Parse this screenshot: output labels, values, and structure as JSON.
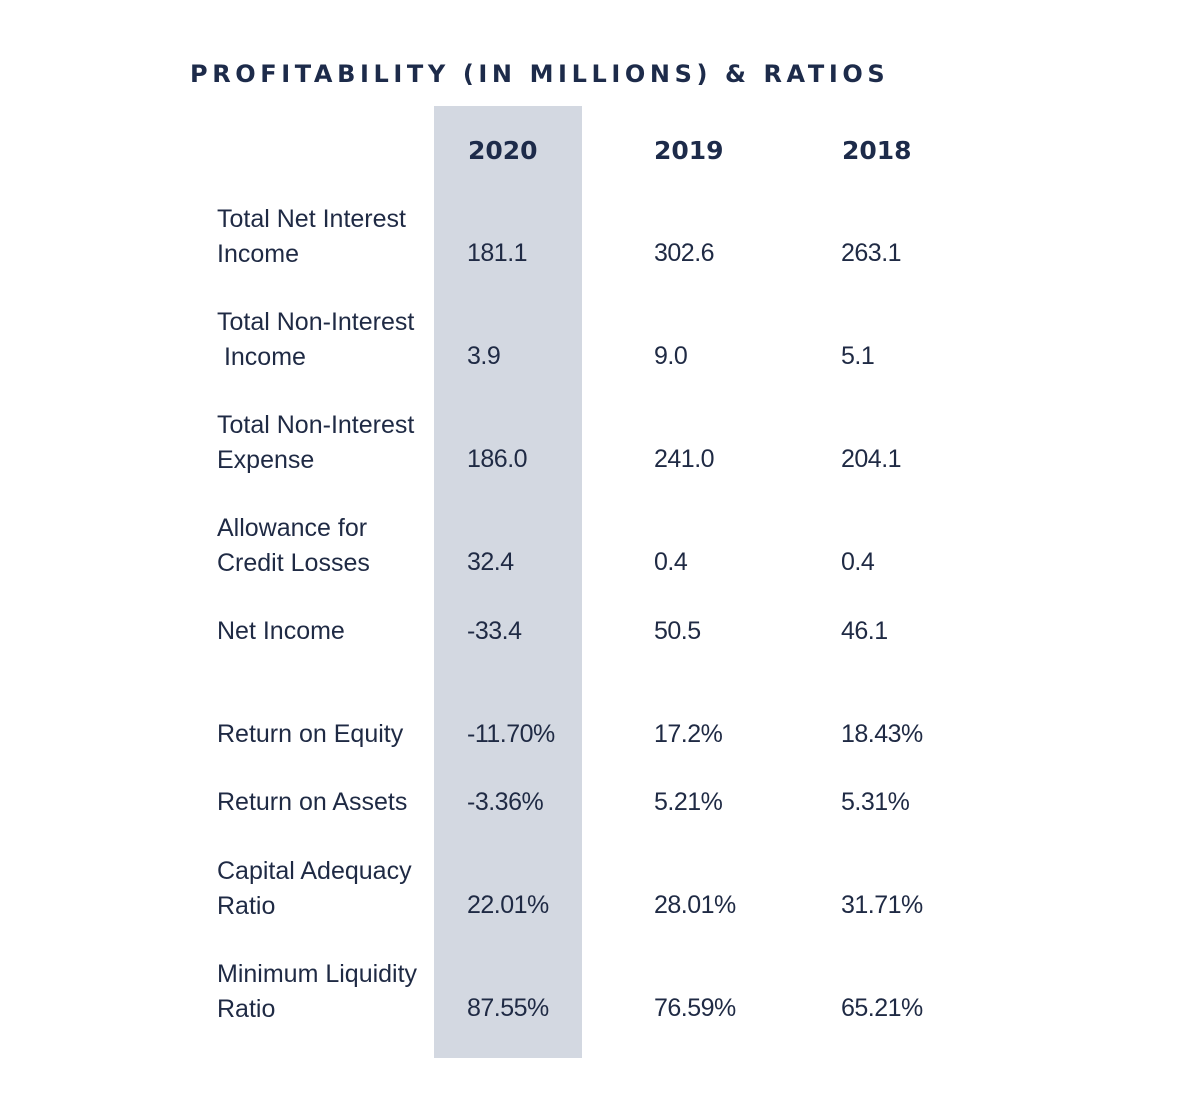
{
  "title": "PROFITABILITY (IN MILLIONS) & RATIOS",
  "years": [
    "2020",
    "2019",
    "2018"
  ],
  "rows": [
    {
      "label": "Total Net Interest\nIncome",
      "values": [
        "181.1",
        "302.6",
        "263.1"
      ]
    },
    {
      "label": "Total Non-Interest\n Income",
      "values": [
        "3.9",
        "9.0",
        "5.1"
      ]
    },
    {
      "label": "Total Non-Interest\nExpense",
      "values": [
        "186.0",
        "241.0",
        "204.1"
      ]
    },
    {
      "label": "Allowance for\nCredit Losses",
      "values": [
        "32.4",
        "0.4",
        "0.4"
      ]
    },
    {
      "label": "Net Income",
      "values": [
        "-33.4",
        "50.5",
        "46.1"
      ]
    },
    {
      "label": "Return on Equity",
      "values": [
        "-11.70%",
        "17.2%",
        "18.43%"
      ]
    },
    {
      "label": "Return on Assets",
      "values": [
        "-3.36%",
        "5.21%",
        "5.31%"
      ]
    },
    {
      "label": "Capital Adequacy\nRatio",
      "values": [
        "22.01%",
        "28.01%",
        "31.71%"
      ]
    },
    {
      "label": "Minimum Liquidity\nRatio",
      "values": [
        "87.55%",
        "76.59%",
        "65.21%"
      ]
    }
  ]
}
